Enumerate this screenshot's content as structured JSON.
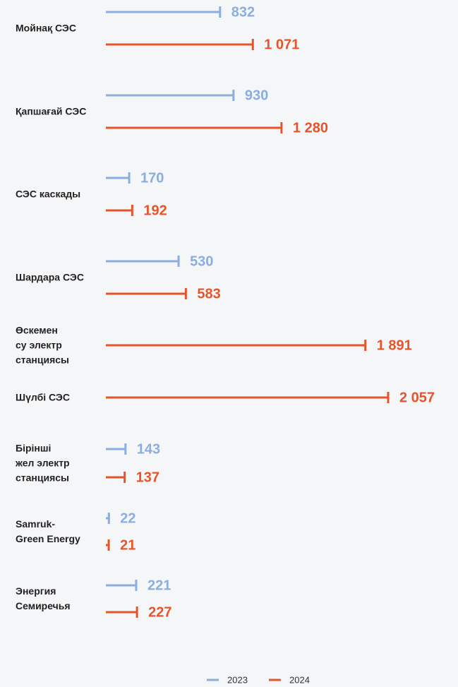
{
  "chart_data": {
    "type": "bar",
    "categories": [
      "Мойнақ СЭС",
      "Қапшағай СЭС",
      "СЭС каскады",
      "Шардара СЭС",
      "Өскемен\nсу электр\nстанциясы",
      "Шүлбі СЭС",
      "Бірінші\nжел электр\nстанциясы",
      "Samruk-\nGreen Energy",
      "Энергия\nСемиречья"
    ],
    "series": [
      {
        "name": "2023",
        "color": "#8aaee0",
        "values": [
          832,
          930,
          170,
          530,
          null,
          null,
          143,
          22,
          221
        ],
        "value_labels": [
          "832",
          "930",
          "170",
          "530",
          null,
          null,
          "143",
          "22",
          "221"
        ]
      },
      {
        "name": "2024",
        "color": "#e8542a",
        "values": [
          1071,
          1280,
          192,
          583,
          1891,
          2057,
          137,
          21,
          227
        ],
        "value_labels": [
          "1 071",
          "1 280",
          "192",
          "583",
          "1 891",
          "2 057",
          "137",
          "21",
          "227"
        ]
      }
    ]
  }
}
